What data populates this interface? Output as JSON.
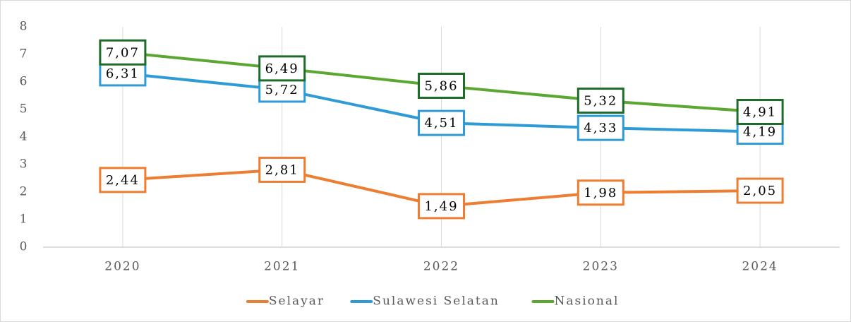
{
  "chart_data": {
    "type": "line",
    "categories": [
      "2020",
      "2021",
      "2022",
      "2023",
      "2024"
    ],
    "series": [
      {
        "name": "Selayar",
        "color": "#ed7d31",
        "label_color": "#ed7d31",
        "values": [
          2.44,
          2.81,
          1.49,
          1.98,
          2.05
        ],
        "value_labels": [
          "2,44",
          "2,81",
          "1,49",
          "1,98",
          "2,05"
        ]
      },
      {
        "name": "Sulawesi Selatan",
        "color": "#2e9bd6",
        "label_color": "#2e9bd6",
        "values": [
          6.31,
          5.72,
          4.51,
          4.33,
          4.19
        ],
        "value_labels": [
          "6,31",
          "5,72",
          "4,51",
          "4,33",
          "4,19"
        ]
      },
      {
        "name": "Nasional",
        "color": "#5aa832",
        "label_color": "#1e6b2a",
        "values": [
          7.07,
          6.49,
          5.86,
          5.32,
          4.91
        ],
        "value_labels": [
          "7,07",
          "6,49",
          "5,86",
          "5,32",
          "4,91"
        ]
      }
    ],
    "ylim": [
      0,
      8
    ],
    "yticks": [
      0,
      1,
      2,
      3,
      4,
      5,
      6,
      7,
      8
    ],
    "grid": true,
    "legend": "bottom"
  }
}
